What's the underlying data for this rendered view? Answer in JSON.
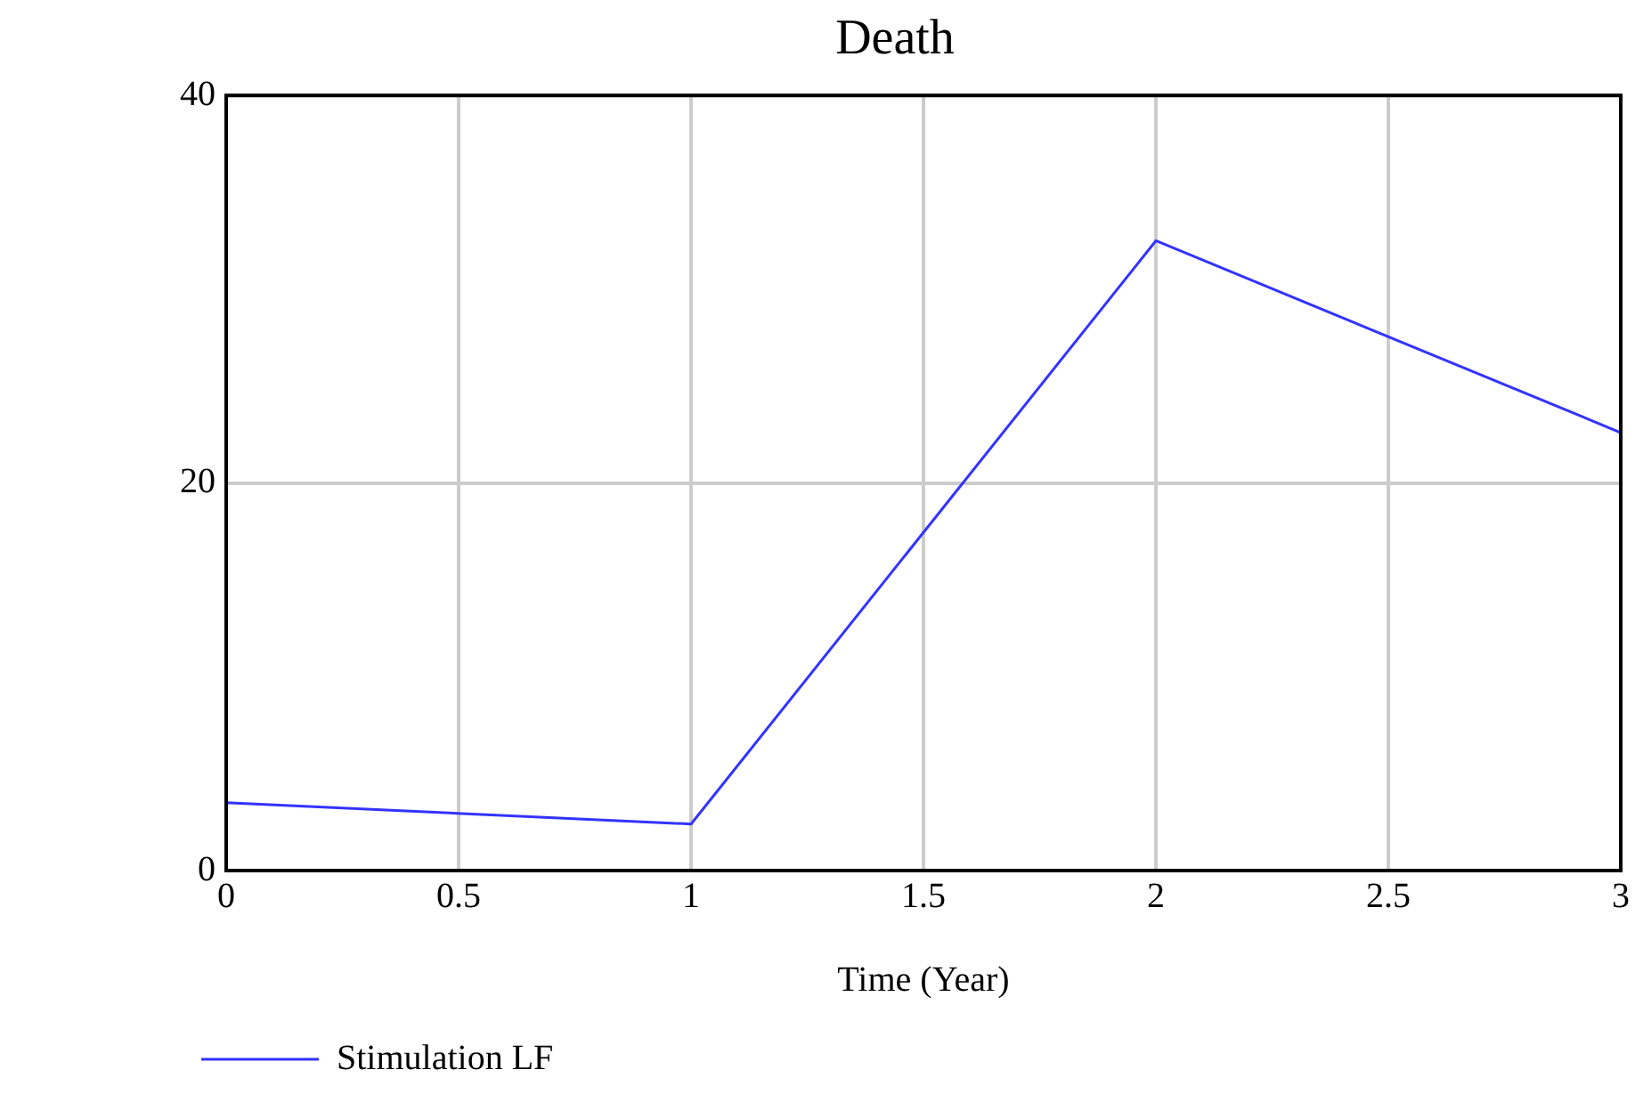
{
  "chart_data": {
    "type": "line",
    "title": "Death",
    "xlabel": "Time (Year)",
    "x": [
      0,
      1,
      2,
      3
    ],
    "series": [
      {
        "name": "Stimulation LF",
        "color": "#3333ff",
        "values": [
          3.5,
          2.4,
          32.5,
          22.6
        ]
      }
    ],
    "xlim": [
      0,
      3
    ],
    "xticks": [
      0,
      0.5,
      1,
      1.5,
      2,
      2.5,
      3
    ],
    "ylim": [
      0,
      40
    ],
    "yticks": [
      0,
      20,
      40
    ],
    "grid": true,
    "legend": "bottom left",
    "marker": "none",
    "line_style": "solid"
  }
}
